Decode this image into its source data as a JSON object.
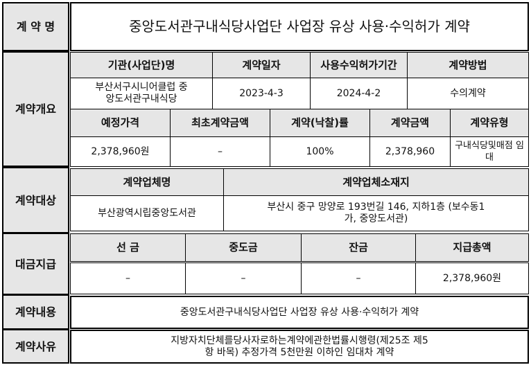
{
  "contract_name": {
    "label": "계 약 명",
    "value": "중앙도서관구내식당사업단 사업장 유상 사용·수익허가 계약"
  },
  "overview": {
    "label": "계약개요",
    "headers1": [
      "기관(사업단)명",
      "계약일자",
      "사용수익허가기간",
      "계약방법"
    ],
    "values1": [
      "부산서구시니어클럽 중앙도서관구내식당",
      "2023-4-3",
      "2024-4-2",
      "수의계약"
    ],
    "headers2": [
      "예정가격",
      "최초계약금액",
      "계약(낙찰)률",
      "계약금액",
      "계약유형"
    ],
    "values2": [
      "2,378,960원",
      "–",
      "100%",
      "2,378,960",
      "구내식당및매점 임대"
    ]
  },
  "target": {
    "label": "계약대상",
    "headers": [
      "계약업체명",
      "계약업체소재지"
    ],
    "values": [
      "부산광역시립중앙도서관",
      "부산시 중구 망양로 193번길 146, 지하1층 (보수동1가, 중앙도서관)"
    ]
  },
  "payment": {
    "label": "대금지급",
    "headers": [
      "선 금",
      "중도금",
      "잔금",
      "지급총액"
    ],
    "values": [
      "–",
      "–",
      "–",
      "2,378,960원"
    ]
  },
  "content": {
    "label": "계약내용",
    "value": "중앙도서관구내식당사업단 사업장 유상 사용·수익허가 계약"
  },
  "reason": {
    "label": "계약사유",
    "value": "지방자치단체를당사자로하는계약에관한법률시행령(제25조 제5항 바목) 추정가격 5천만원 이하인 임대차 계약"
  }
}
